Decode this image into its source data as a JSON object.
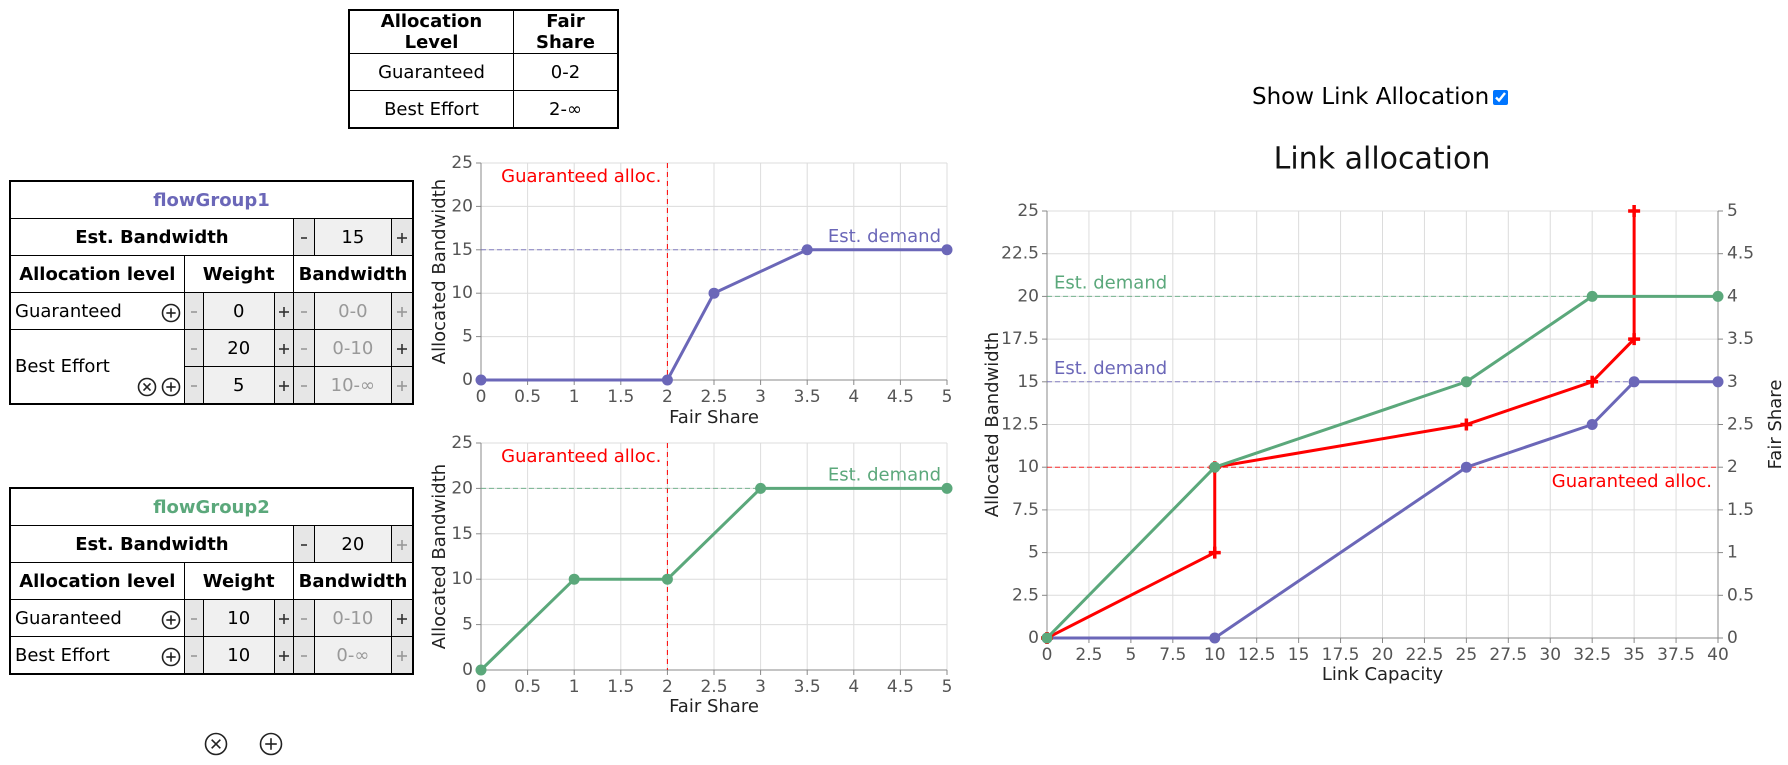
{
  "allocation_table": {
    "header": [
      "Allocation Level",
      "Fair Share"
    ],
    "rows": [
      [
        "Guaranteed",
        "0-2"
      ],
      [
        "Best Effort",
        "2-∞"
      ]
    ]
  },
  "flow_groups": [
    {
      "name": "flowGroup1",
      "color": "#6b67b8",
      "est_bandwidth_label": "Est. Bandwidth",
      "est_bandwidth": 15,
      "header": [
        "Allocation level",
        "Weight",
        "Bandwidth"
      ],
      "rows": [
        {
          "level": "Guaranteed",
          "weight": 0,
          "bandwidth": "0-0"
        },
        {
          "level": "Best Effort",
          "weight": 20,
          "bandwidth": "0-10"
        },
        {
          "weight": 5,
          "bandwidth": "10-∞"
        }
      ]
    },
    {
      "name": "flowGroup2",
      "color": "#5ba87b",
      "est_bandwidth_label": "Est. Bandwidth",
      "est_bandwidth": 20,
      "header": [
        "Allocation level",
        "Weight",
        "Bandwidth"
      ],
      "rows": [
        {
          "level": "Guaranteed",
          "weight": 10,
          "bandwidth": "0-10"
        },
        {
          "level": "Best Effort",
          "weight": 10,
          "bandwidth": "0-∞"
        }
      ]
    }
  ],
  "show_link_allocation": {
    "label": "Show Link Allocation",
    "checked": true
  },
  "chart_data": [
    {
      "type": "line",
      "x": [
        0,
        2,
        2.5,
        3.5,
        5
      ],
      "series": [
        {
          "color": "#6b67b8",
          "marker": "circle",
          "values": [
            0,
            0,
            10,
            15,
            15
          ]
        }
      ],
      "xlim": [
        0,
        5
      ],
      "xticks": [
        0,
        0.5,
        1,
        1.5,
        2,
        2.5,
        3,
        3.5,
        4,
        4.5,
        5
      ],
      "ylim": [
        0,
        25
      ],
      "yticks": [
        0,
        5,
        10,
        15,
        20,
        25
      ],
      "xlabel": "Fair Share",
      "ylabel": "Allocated Bandwidth",
      "grid": true,
      "reference_lines": [
        {
          "axis": "x",
          "value": 2,
          "label": "Guaranteed alloc.",
          "color": "#ff0000"
        },
        {
          "axis": "y",
          "value": 15,
          "label": "Est. demand",
          "color": "#6b67b8"
        }
      ]
    },
    {
      "type": "line",
      "x": [
        0,
        1,
        2,
        3,
        5
      ],
      "series": [
        {
          "color": "#5ba87b",
          "marker": "circle",
          "values": [
            0,
            10,
            10,
            20,
            20
          ]
        }
      ],
      "xlim": [
        0,
        5
      ],
      "xticks": [
        0,
        0.5,
        1,
        1.5,
        2,
        2.5,
        3,
        3.5,
        4,
        4.5,
        5
      ],
      "ylim": [
        0,
        25
      ],
      "yticks": [
        0,
        5,
        10,
        15,
        20,
        25
      ],
      "xlabel": "Fair Share",
      "ylabel": "Allocated Bandwidth",
      "grid": true,
      "reference_lines": [
        {
          "axis": "x",
          "value": 2,
          "label": "Guaranteed alloc.",
          "color": "#ff0000"
        },
        {
          "axis": "y",
          "value": 20,
          "label": "Est. demand",
          "color": "#5ba87b"
        }
      ]
    },
    {
      "type": "line",
      "title": "Link allocation",
      "series": [
        {
          "color": "#6b67b8",
          "marker": "circle",
          "x": [
            0,
            10,
            25,
            32.5,
            35,
            40
          ],
          "values": [
            0,
            0,
            10,
            12.5,
            15,
            15
          ]
        },
        {
          "color": "#ff0000",
          "marker": "cross",
          "axis": "y2",
          "x": [
            0,
            10,
            10,
            25,
            32.5,
            35,
            35
          ],
          "values": [
            0,
            1,
            2,
            2.5,
            3,
            3.5,
            5
          ]
        },
        {
          "color": "#5ba87b",
          "marker": "circle",
          "x": [
            0,
            10,
            25,
            32.5,
            40
          ],
          "values": [
            0,
            10,
            15,
            20,
            20
          ]
        }
      ],
      "xlim": [
        0,
        40
      ],
      "xticks": [
        0,
        2.5,
        5,
        7.5,
        10,
        12.5,
        15,
        17.5,
        20,
        22.5,
        25,
        27.5,
        30,
        32.5,
        35,
        37.5,
        40
      ],
      "ylim": [
        0,
        25
      ],
      "yticks": [
        0,
        2.5,
        5,
        7.5,
        10,
        12.5,
        15,
        17.5,
        20,
        22.5,
        25
      ],
      "y2lim": [
        0,
        5
      ],
      "y2ticks": [
        0,
        0.5,
        1,
        1.5,
        2,
        2.5,
        3,
        3.5,
        4,
        4.5,
        5
      ],
      "xlabel": "Link Capacity",
      "ylabel": "Allocated Bandwidth",
      "y2label": "Fair Share",
      "grid": true,
      "reference_lines": [
        {
          "axis": "y",
          "value": 20,
          "label": "Est. demand",
          "color": "#5ba87b"
        },
        {
          "axis": "y",
          "value": 15,
          "label": "Est. demand",
          "color": "#6b67b8"
        },
        {
          "axis": "y",
          "value": 10,
          "label": "Guaranteed alloc.",
          "color": "#ff0000"
        }
      ]
    }
  ]
}
